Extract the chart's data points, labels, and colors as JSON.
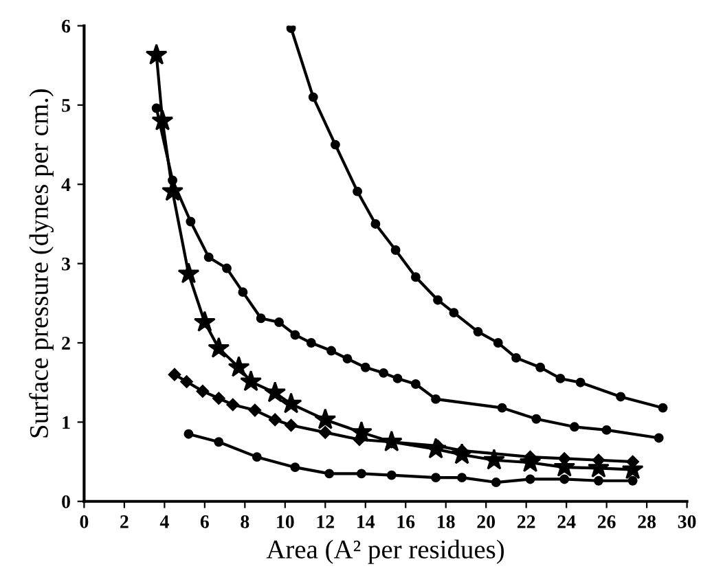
{
  "chart_data": {
    "type": "line",
    "xlabel": "Area (A² per residues)",
    "ylabel": "Surface pressure (dynes per cm.)",
    "xlim": [
      0,
      30
    ],
    "ylim": [
      0,
      6
    ],
    "xticks": [
      0,
      2,
      4,
      6,
      8,
      10,
      12,
      14,
      16,
      18,
      20,
      22,
      24,
      26,
      28,
      30
    ],
    "yticks": [
      0,
      1,
      2,
      3,
      4,
      5,
      6
    ],
    "grid": false,
    "legend": false,
    "line_style": "solid",
    "series": [
      {
        "color": "#000000",
        "marker": "circle",
        "x": [
          10.3,
          11.4,
          12.5,
          13.6,
          14.5,
          15.5,
          16.5,
          17.6,
          18.4,
          19.6,
          20.6,
          21.5,
          22.7,
          23.7,
          24.7,
          26.7,
          28.8
        ],
        "values": [
          5.97,
          5.1,
          4.5,
          3.91,
          3.5,
          3.17,
          2.83,
          2.54,
          2.38,
          2.14,
          2.0,
          1.81,
          1.69,
          1.55,
          1.5,
          1.32,
          1.18
        ]
      },
      {
        "color": "#000000",
        "marker": "circle",
        "x": [
          3.6,
          4.4,
          5.3,
          6.2,
          7.1,
          7.9,
          8.8,
          9.7,
          10.5,
          11.3,
          12.3,
          13.1,
          14.0,
          14.9,
          15.6,
          16.5,
          17.5,
          20.8,
          22.5,
          24.4,
          26.0,
          28.6
        ],
        "values": [
          4.96,
          4.05,
          3.53,
          3.08,
          2.94,
          2.64,
          2.31,
          2.26,
          2.1,
          2.0,
          1.9,
          1.8,
          1.69,
          1.62,
          1.55,
          1.48,
          1.29,
          1.18,
          1.04,
          0.94,
          0.9,
          0.8
        ]
      },
      {
        "color": "#000000",
        "marker": "star",
        "x": [
          3.6,
          3.9,
          4.4,
          5.2,
          6.0,
          6.7,
          7.7,
          8.3,
          9.5,
          10.3,
          12.0,
          13.8,
          15.3,
          17.5,
          18.8,
          20.4,
          22.2,
          23.9,
          25.6,
          27.3
        ],
        "values": [
          5.63,
          4.8,
          3.91,
          2.87,
          2.26,
          1.93,
          1.69,
          1.51,
          1.37,
          1.23,
          1.03,
          0.87,
          0.75,
          0.66,
          0.59,
          0.52,
          0.49,
          0.43,
          0.42,
          0.4
        ]
      },
      {
        "color": "#000000",
        "marker": "diamond",
        "x": [
          4.5,
          5.1,
          5.9,
          6.7,
          7.4,
          8.5,
          9.5,
          10.3,
          12.0,
          13.7,
          15.3,
          17.6,
          18.8,
          22.2,
          23.9,
          25.6,
          27.3
        ],
        "values": [
          1.6,
          1.51,
          1.39,
          1.3,
          1.22,
          1.15,
          1.03,
          0.96,
          0.87,
          0.78,
          0.75,
          0.7,
          0.64,
          0.56,
          0.54,
          0.52,
          0.5
        ]
      },
      {
        "color": "#000000",
        "marker": "circle",
        "x": [
          5.2,
          6.7,
          8.6,
          10.5,
          12.2,
          13.8,
          15.3,
          17.5,
          18.8,
          20.5,
          22.2,
          23.9,
          25.6,
          27.3
        ],
        "values": [
          0.85,
          0.75,
          0.56,
          0.43,
          0.35,
          0.35,
          0.33,
          0.3,
          0.3,
          0.24,
          0.28,
          0.28,
          0.26,
          0.26
        ]
      }
    ]
  }
}
